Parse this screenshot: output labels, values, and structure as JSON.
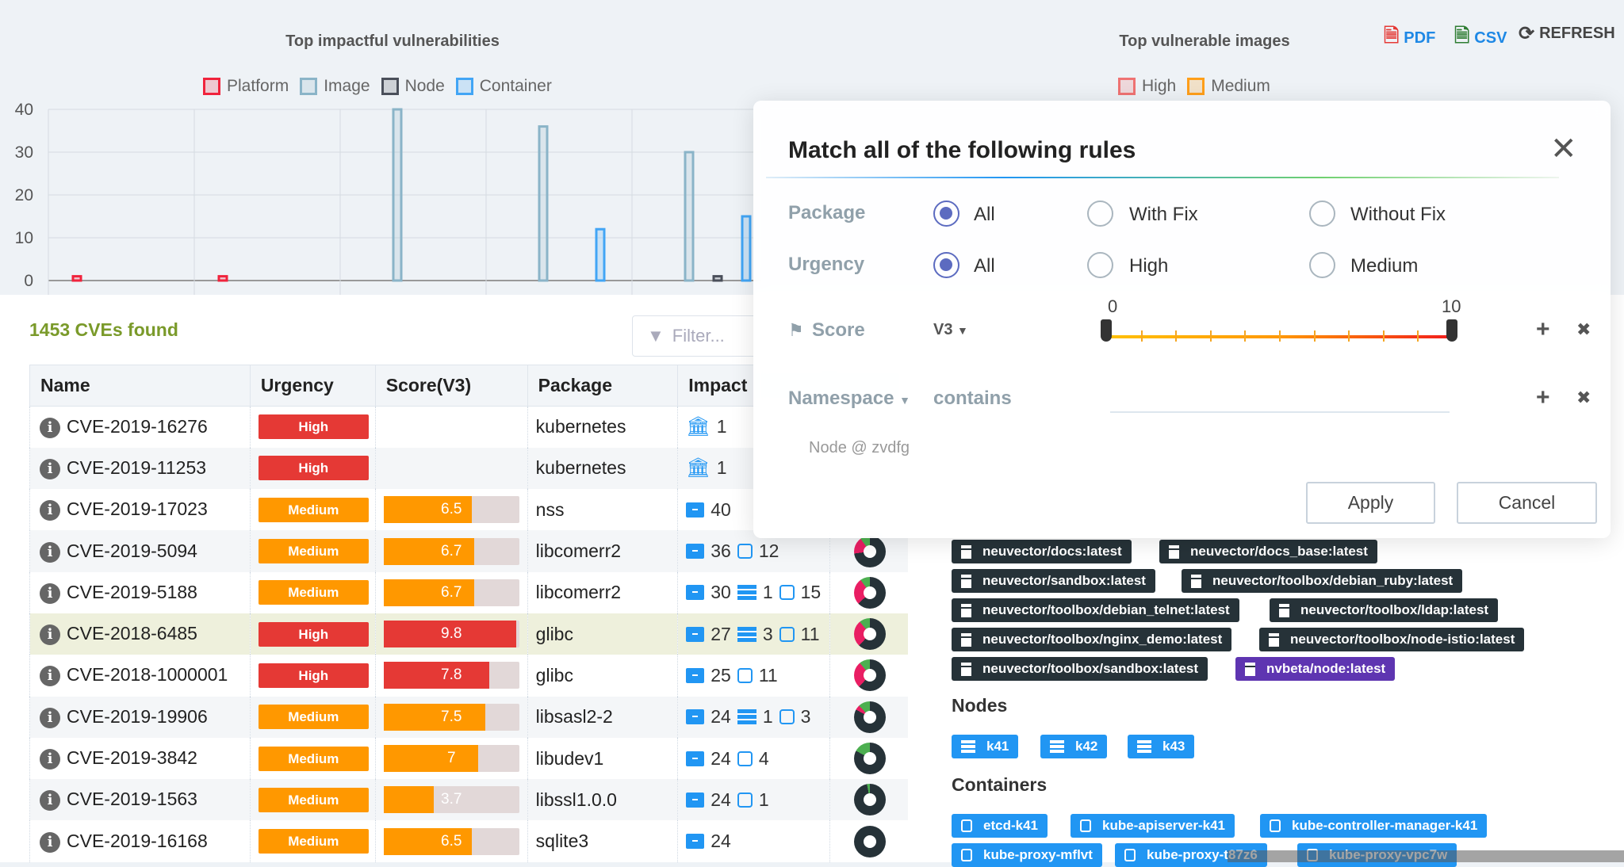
{
  "toolbar": {
    "pdf": "PDF",
    "csv": "CSV",
    "refresh": "REFRESH",
    "pdf_color": "#e53935",
    "csv_color": "#2e7d32"
  },
  "chart_data": [
    {
      "type": "bar",
      "title": "Top impactful vulnerabilities",
      "categories": [
        "",
        "",
        "",
        "",
        ""
      ],
      "ylim": [
        0,
        40
      ],
      "yticks": [
        0,
        10,
        20,
        30,
        40
      ],
      "grid": true,
      "legend": "top",
      "series": [
        {
          "name": "Platform",
          "color": "#f0233c",
          "values": [
            1,
            1,
            0,
            0,
            0
          ]
        },
        {
          "name": "Image",
          "color": "#8ab4c8",
          "values": [
            0,
            0,
            40,
            36,
            30
          ]
        },
        {
          "name": "Node",
          "color": "#4a4f5a",
          "values": [
            0,
            0,
            0,
            0,
            1
          ]
        },
        {
          "name": "Container",
          "color": "#42a5f5",
          "values": [
            0,
            0,
            0,
            12,
            15
          ]
        }
      ]
    },
    {
      "type": "bar",
      "title": "Top vulnerable images",
      "legend": "top",
      "series": [
        {
          "name": "High",
          "color": "#ef7373"
        },
        {
          "name": "Medium",
          "color": "#ff9f1a"
        }
      ]
    }
  ],
  "summary": "1453 CVEs found",
  "filter": {
    "placeholder": "Filter..."
  },
  "table": {
    "headers": [
      "Name",
      "Urgency",
      "Score(V3)",
      "Package",
      "Impact"
    ],
    "rows": [
      {
        "name": "CVE-2019-16276",
        "urgency": "High",
        "score": null,
        "package": "kubernetes",
        "platform": 1,
        "donut": [
          0,
          0,
          1
        ]
      },
      {
        "name": "CVE-2019-11253",
        "urgency": "High",
        "score": null,
        "package": "kubernetes",
        "platform": 1,
        "donut": [
          0,
          0,
          1
        ]
      },
      {
        "name": "CVE-2019-17023",
        "urgency": "Medium",
        "score": 6.5,
        "package": "nss",
        "images": 40,
        "donut": [
          0,
          0,
          1
        ]
      },
      {
        "name": "CVE-2019-5094",
        "urgency": "Medium",
        "score": 6.7,
        "package": "libcomerr2",
        "images": 36,
        "containers": 12,
        "donut": [
          0.17,
          0.1,
          0.73
        ]
      },
      {
        "name": "CVE-2019-5188",
        "urgency": "Medium",
        "score": 6.7,
        "package": "libcomerr2",
        "images": 30,
        "nodes": 1,
        "containers": "15",
        "donut": [
          0.27,
          0.1,
          0.63
        ]
      },
      {
        "name": "CVE-2018-6485",
        "urgency": "High",
        "score": 9.8,
        "package": "glibc",
        "images": 27,
        "nodes": 3,
        "containers": "11",
        "donut": [
          0.27,
          0.11,
          0.62
        ]
      },
      {
        "name": "CVE-2018-1000001",
        "urgency": "High",
        "score": 7.8,
        "package": "glibc",
        "images": 25,
        "containers": 11,
        "donut": [
          0.27,
          0.11,
          0.62
        ]
      },
      {
        "name": "CVE-2019-19906",
        "urgency": "Medium",
        "score": 7.5,
        "package": "libsasl2-2",
        "images": 24,
        "nodes": 1,
        "containers": 3,
        "donut": [
          0.05,
          0.12,
          0.83
        ]
      },
      {
        "name": "CVE-2019-3842",
        "urgency": "Medium",
        "score": 7,
        "package": "libudev1",
        "images": 24,
        "containers": 4,
        "donut": [
          0,
          0.17,
          0.83
        ]
      },
      {
        "name": "CVE-2019-1563",
        "urgency": "Medium",
        "score": 3.7,
        "package": "libssl1.0.0",
        "images": 24,
        "containers": 1,
        "donut": [
          0,
          0.03,
          0.97
        ]
      },
      {
        "name": "CVE-2019-16168",
        "urgency": "Medium",
        "score": 6.5,
        "package": "sqlite3",
        "images": 24,
        "donut": [
          0,
          0,
          1
        ]
      }
    ]
  },
  "colors": {
    "high": "#e53935",
    "medium": "#ff9800",
    "donut_high": "#e91e63",
    "donut_medium": "#4caf50",
    "donut_low": "#263238"
  },
  "details": {
    "images": [
      "neuvector/docs:latest",
      "neuvector/docs_base:latest",
      "neuvector/sandbox:latest",
      "neuvector/toolbox/debian_ruby:latest",
      "neuvector/toolbox/debian_telnet:latest",
      "neuvector/toolbox/ldap:latest",
      "neuvector/toolbox/nginx_demo:latest",
      "neuvector/toolbox/node-istio:latest",
      "neuvector/toolbox/sandbox:latest",
      "nvbeta/node:latest"
    ],
    "nodes_title": "Nodes",
    "nodes": [
      "k41",
      "k42",
      "k43"
    ],
    "containers_title": "Containers",
    "containers": [
      "etcd-k41",
      "kube-apiserver-k41",
      "kube-controller-manager-k41",
      "kube-proxy-mflvt",
      "kube-proxy-t87z6",
      "kube-proxy-vpc7w"
    ]
  },
  "modal": {
    "title": "Match all of the following rules",
    "package": {
      "label": "Package",
      "options": [
        "All",
        "With Fix",
        "Without Fix"
      ],
      "selected": "All"
    },
    "urgency": {
      "label": "Urgency",
      "options": [
        "All",
        "High",
        "Medium"
      ],
      "selected": "All"
    },
    "score": {
      "label": "Score",
      "version": "V3",
      "min_label": "0",
      "max_label": "10",
      "range": [
        0,
        10
      ]
    },
    "namespace": {
      "label": "Namespace",
      "operator": "contains",
      "value": ""
    },
    "hint": "Node @ zvdfg",
    "apply": "Apply",
    "cancel": "Cancel"
  }
}
